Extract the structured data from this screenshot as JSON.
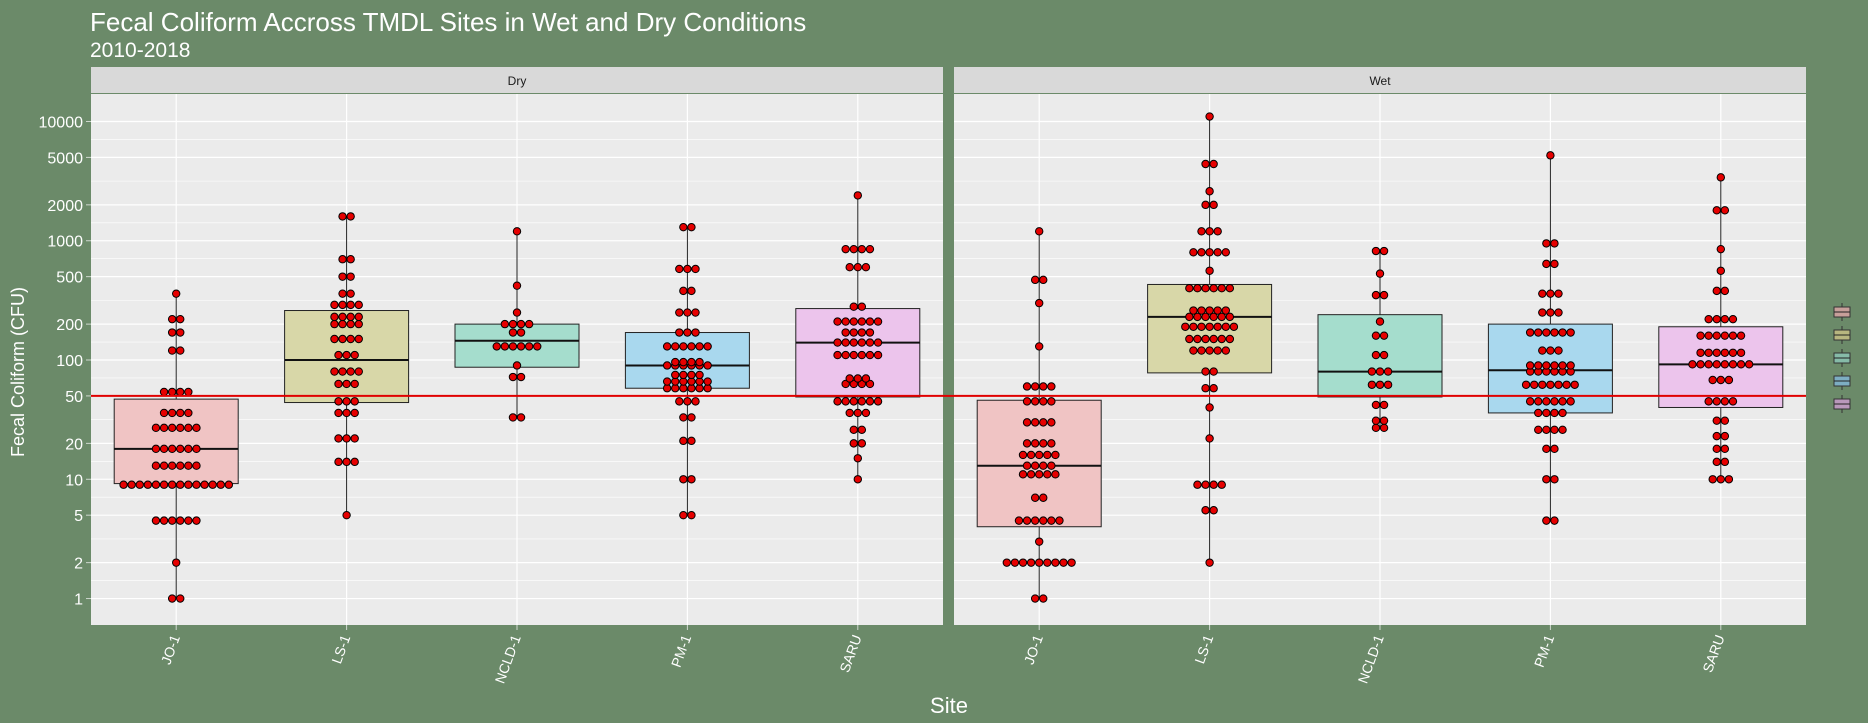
{
  "chart_data": {
    "type": "box",
    "title": "Fecal Coliform Accross TMDL Sites in Wet and Dry Conditions",
    "subtitle": "2010-2018",
    "xlabel": "Site",
    "ylabel": "Fecal Coliform (CFU)",
    "y_scale": "log10",
    "ylim": [
      0.6,
      17000
    ],
    "y_ticks": [
      1,
      2,
      5,
      10,
      20,
      50,
      100,
      200,
      500,
      1000,
      2000,
      5000,
      10000
    ],
    "threshold_line": 50,
    "grid": true,
    "categories": [
      "JO-1",
      "LS-1",
      "NCLD-1",
      "PM-1",
      "SARU"
    ],
    "colors": {
      "JO-1": "#f0c4c4",
      "LS-1": "#d8d7a8",
      "NCLD-1": "#a5ddcd",
      "PM-1": "#a9d8ee",
      "SARU": "#ecc4ec",
      "threshold": "#e00000",
      "point": "#e60000",
      "panel": "#ebebeb",
      "strip": "#d9d9d9",
      "background": "#6b8a69"
    },
    "panels": [
      {
        "name": "Dry",
        "boxes": [
          {
            "site": "JO-1",
            "q1": 9.2,
            "median": 18,
            "q3": 47,
            "whisker_low": 1,
            "whisker_high": 360,
            "points": [
              1,
              1,
              2,
              4.5,
              4.5,
              4.5,
              4.5,
              4.5,
              4.5,
              9,
              9,
              9,
              9,
              9,
              9,
              9,
              9,
              9,
              9,
              9,
              9,
              9,
              9,
              13,
              13,
              13,
              13,
              13,
              13,
              18,
              18,
              18,
              18,
              18,
              18,
              27,
              27,
              27,
              27,
              27,
              27,
              36,
              36,
              36,
              36,
              54,
              54,
              54,
              54,
              120,
              120,
              170,
              170,
              220,
              220,
              360
            ]
          },
          {
            "site": "LS-1",
            "q1": 44,
            "median": 100,
            "q3": 260,
            "whisker_low": 5,
            "whisker_high": 1600,
            "points": [
              5,
              14,
              14,
              14,
              22,
              22,
              22,
              36,
              36,
              36,
              45,
              45,
              45,
              63,
              63,
              63,
              80,
              80,
              80,
              80,
              110,
              110,
              110,
              150,
              150,
              150,
              150,
              200,
              200,
              200,
              200,
              230,
              230,
              230,
              230,
              290,
              290,
              290,
              290,
              360,
              360,
              500,
              500,
              700,
              700,
              1600,
              1600
            ]
          },
          {
            "site": "NCLD-1",
            "q1": 87,
            "median": 145,
            "q3": 200,
            "whisker_low": 33,
            "whisker_high": 1200,
            "points": [
              33,
              33,
              72,
              72,
              90,
              130,
              130,
              130,
              130,
              130,
              130,
              170,
              170,
              200,
              200,
              200,
              200,
              250,
              420,
              1200
            ]
          },
          {
            "site": "PM-1",
            "q1": 58,
            "median": 90,
            "q3": 170,
            "whisker_low": 5,
            "whisker_high": 1300,
            "points": [
              5,
              5,
              10,
              10,
              21,
              21,
              33,
              33,
              45,
              45,
              45,
              58,
              58,
              58,
              58,
              58,
              58,
              66,
              66,
              66,
              66,
              66,
              66,
              75,
              75,
              75,
              75,
              90,
              90,
              90,
              90,
              90,
              90,
              96,
              96,
              96,
              96,
              130,
              130,
              130,
              130,
              130,
              130,
              170,
              170,
              170,
              250,
              250,
              250,
              380,
              380,
              580,
              580,
              580,
              1300,
              1300
            ]
          },
          {
            "site": "SARU",
            "q1": 49,
            "median": 140,
            "q3": 270,
            "whisker_low": 10,
            "whisker_high": 2400,
            "points": [
              10,
              15,
              20,
              20,
              26,
              26,
              36,
              36,
              36,
              45,
              45,
              45,
              45,
              45,
              45,
              63,
              63,
              63,
              63,
              70,
              70,
              70,
              110,
              110,
              110,
              110,
              110,
              110,
              140,
              140,
              140,
              140,
              140,
              140,
              170,
              170,
              170,
              170,
              210,
              210,
              210,
              210,
              210,
              210,
              280,
              280,
              600,
              600,
              600,
              850,
              850,
              850,
              850,
              2400
            ]
          }
        ]
      },
      {
        "name": "Wet",
        "boxes": [
          {
            "site": "JO-1",
            "q1": 4,
            "median": 13,
            "q3": 46,
            "whisker_low": 1,
            "whisker_high": 1200,
            "points": [
              1,
              1,
              2,
              2,
              2,
              2,
              2,
              2,
              2,
              2,
              2,
              3,
              4.5,
              4.5,
              4.5,
              4.5,
              4.5,
              4.5,
              7,
              7,
              11,
              11,
              11,
              11,
              11,
              13,
              13,
              13,
              13,
              16,
              16,
              16,
              16,
              16,
              20,
              20,
              20,
              20,
              30,
              30,
              30,
              30,
              45,
              45,
              45,
              45,
              60,
              60,
              60,
              60,
              130,
              300,
              470,
              470,
              1200
            ]
          },
          {
            "site": "LS-1",
            "q1": 78,
            "median": 230,
            "q3": 430,
            "whisker_low": 2,
            "whisker_high": 11000,
            "points": [
              2,
              5.5,
              5.5,
              9,
              9,
              9,
              9,
              22,
              40,
              58,
              58,
              80,
              80,
              120,
              120,
              120,
              120,
              120,
              150,
              150,
              150,
              150,
              150,
              150,
              190,
              190,
              190,
              190,
              190,
              190,
              190,
              230,
              230,
              230,
              230,
              230,
              230,
              260,
              260,
              260,
              260,
              260,
              400,
              400,
              400,
              400,
              400,
              400,
              560,
              800,
              800,
              800,
              800,
              800,
              1200,
              1200,
              1200,
              2000,
              2000,
              2600,
              4400,
              4400,
              11000
            ]
          },
          {
            "site": "NCLD-1",
            "q1": 49,
            "median": 80,
            "q3": 240,
            "whisker_low": 27,
            "whisker_high": 820,
            "points": [
              27,
              27,
              31,
              31,
              42,
              42,
              62,
              62,
              62,
              80,
              80,
              80,
              110,
              110,
              160,
              160,
              210,
              350,
              350,
              530,
              820,
              820
            ]
          },
          {
            "site": "PM-1",
            "q1": 36,
            "median": 82,
            "q3": 200,
            "whisker_low": 4.5,
            "whisker_high": 5200,
            "points": [
              4.5,
              4.5,
              10,
              10,
              18,
              18,
              26,
              26,
              26,
              26,
              36,
              36,
              36,
              36,
              45,
              45,
              45,
              45,
              45,
              45,
              62,
              62,
              62,
              62,
              62,
              62,
              62,
              80,
              80,
              80,
              80,
              80,
              80,
              90,
              90,
              90,
              90,
              90,
              90,
              120,
              120,
              120,
              170,
              170,
              170,
              170,
              170,
              170,
              250,
              250,
              250,
              360,
              360,
              360,
              640,
              640,
              950,
              950,
              5200
            ]
          },
          {
            "site": "SARU",
            "q1": 40,
            "median": 92,
            "q3": 190,
            "whisker_low": 10,
            "whisker_high": 3400,
            "points": [
              10,
              10,
              10,
              14,
              14,
              18,
              18,
              23,
              23,
              31,
              31,
              45,
              45,
              45,
              45,
              68,
              68,
              68,
              92,
              92,
              92,
              92,
              92,
              92,
              92,
              92,
              115,
              115,
              115,
              115,
              115,
              115,
              160,
              160,
              160,
              160,
              160,
              160,
              220,
              220,
              220,
              220,
              380,
              380,
              560,
              850,
              1800,
              1800,
              3400
            ]
          }
        ]
      }
    ]
  }
}
